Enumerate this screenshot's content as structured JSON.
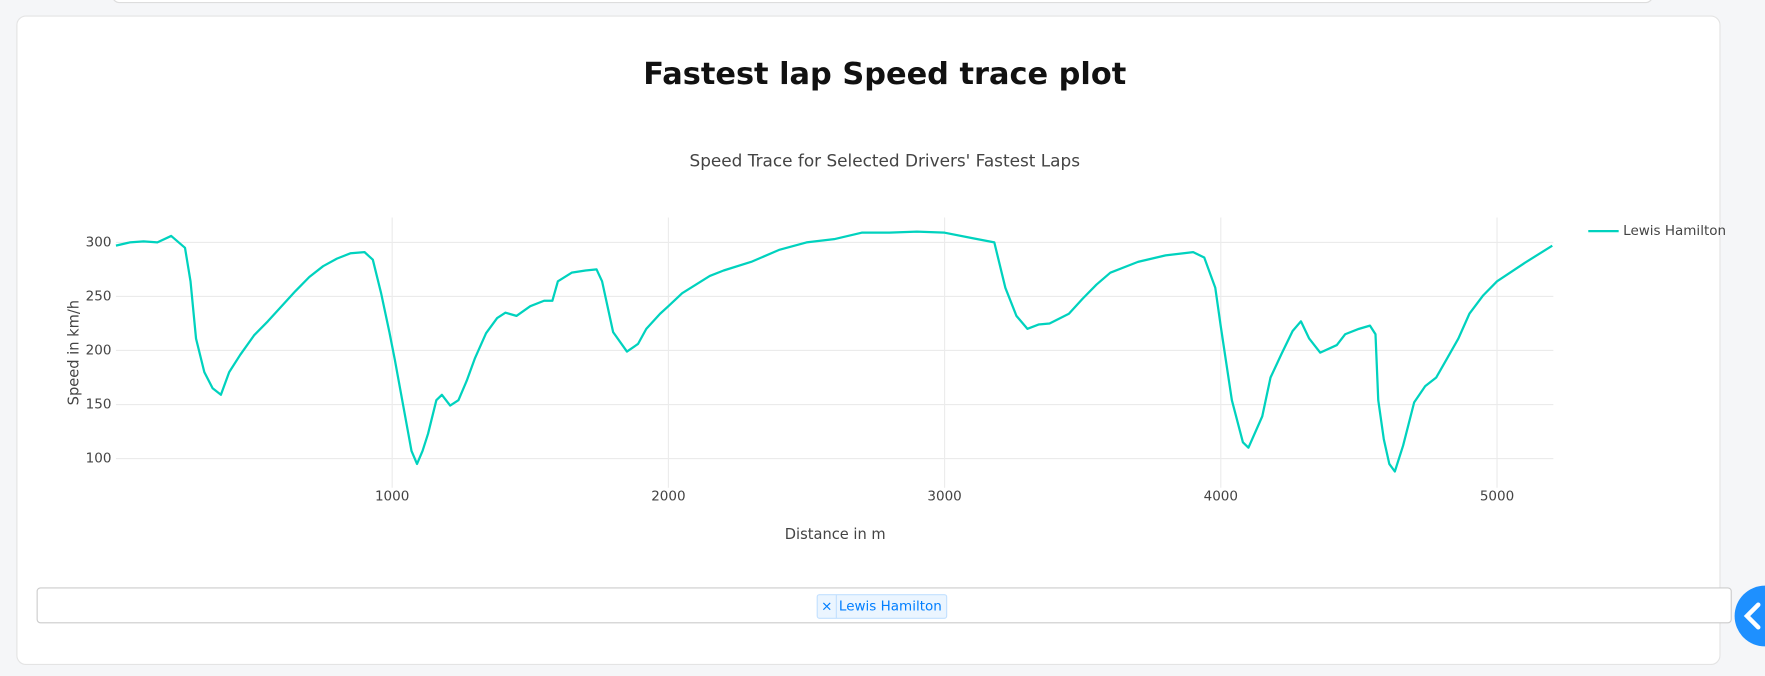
{
  "page": {
    "title": "Fastest lap Speed trace plot"
  },
  "chart_data": {
    "type": "line",
    "title": "Speed Trace for Selected Drivers' Fastest Laps",
    "x_label": "Distance in m",
    "y_label": "Speed in km/h",
    "x": [
      0,
      50,
      100,
      150,
      200,
      250,
      270,
      290,
      320,
      350,
      380,
      410,
      450,
      500,
      550,
      600,
      650,
      700,
      750,
      800,
      850,
      900,
      930,
      960,
      990,
      1010,
      1040,
      1070,
      1090,
      1110,
      1130,
      1160,
      1180,
      1210,
      1240,
      1270,
      1300,
      1340,
      1380,
      1410,
      1450,
      1500,
      1550,
      1580,
      1600,
      1650,
      1700,
      1740,
      1760,
      1800,
      1850,
      1890,
      1920,
      1970,
      2000,
      2050,
      2100,
      2150,
      2200,
      2300,
      2400,
      2500,
      2600,
      2700,
      2800,
      2900,
      3000,
      3100,
      3180,
      3220,
      3260,
      3300,
      3340,
      3380,
      3450,
      3500,
      3550,
      3600,
      3700,
      3800,
      3900,
      3940,
      3980,
      4000,
      4040,
      4080,
      4100,
      4150,
      4180,
      4220,
      4260,
      4290,
      4320,
      4360,
      4420,
      4450,
      4500,
      4540,
      4560,
      4570,
      4590,
      4610,
      4630,
      4660,
      4700,
      4740,
      4780,
      4820,
      4860,
      4900,
      4950,
      5000,
      5100,
      5200
    ],
    "series": [
      {
        "name": "Lewis Hamilton",
        "color": "#00d2be",
        "values": [
          297,
          300,
          301,
          300,
          306,
          295,
          264,
          211,
          180,
          165,
          159,
          180,
          196,
          214,
          227,
          241,
          255,
          268,
          278,
          285,
          290,
          291,
          284,
          253,
          217,
          191,
          149,
          107,
          95,
          107,
          123,
          154,
          159,
          149,
          154,
          172,
          193,
          216,
          230,
          235,
          232,
          241,
          246,
          246,
          264,
          272,
          274,
          275,
          264,
          217,
          199,
          206,
          220,
          234,
          241,
          253,
          261,
          269,
          274,
          282,
          293,
          300,
          303,
          309,
          309,
          310,
          309,
          304,
          300,
          258,
          232,
          220,
          224,
          225,
          234,
          248,
          261,
          272,
          282,
          288,
          291,
          286,
          258,
          222,
          154,
          115,
          110,
          139,
          175,
          197,
          218,
          227,
          211,
          198,
          205,
          215,
          220,
          223,
          215,
          154,
          118,
          95,
          88,
          112,
          152,
          167,
          175,
          193,
          211,
          234,
          251,
          264,
          281,
          297
        ]
      }
    ],
    "xlim": [
      0,
      5204
    ],
    "ylim": [
      73,
      323
    ],
    "xticks": [
      1000,
      2000,
      3000,
      4000,
      5000
    ],
    "yticks": [
      100,
      150,
      200,
      250,
      300
    ],
    "grid": true,
    "legend": "right"
  },
  "selector": {
    "remove_icon": "×",
    "selected": [
      "Lewis Hamilton"
    ]
  }
}
